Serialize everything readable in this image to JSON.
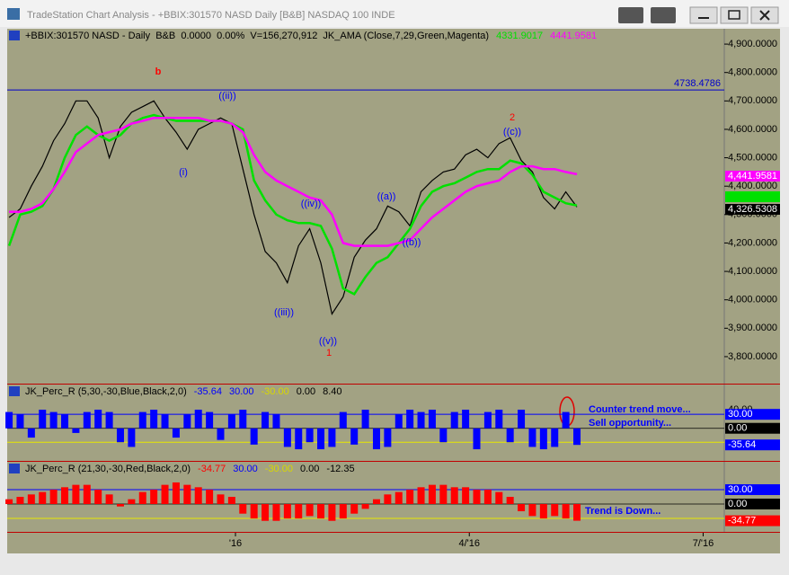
{
  "window": {
    "title": "TradeStation Chart Analysis - +BBIX:301570 NASD Daily [B&B] NASDAQ 100 INDE"
  },
  "chart_data": [
    {
      "type": "line",
      "header": "+BBIX:301570 NASD - Daily  B&B  0.0000  0.00%  V=156,270,912  JK_AMA (Close,7,29,Green,Magenta)",
      "x": [
        0,
        3,
        6,
        9,
        12,
        15,
        18,
        21,
        24,
        27,
        30,
        33,
        36,
        39,
        42,
        45,
        48,
        51,
        54,
        57,
        60,
        63,
        66,
        69,
        72,
        75,
        78,
        81,
        84,
        87,
        90,
        93,
        96,
        99,
        102,
        105,
        108,
        111,
        114,
        117,
        120,
        123,
        126,
        129,
        132,
        135,
        138,
        141,
        144,
        147,
        150,
        153
      ],
      "xlim": [
        -0.5,
        192.7
      ],
      "xticks": [
        {
          "value": 61,
          "label": "'16"
        },
        {
          "value": 124,
          "label": "4/'16"
        },
        {
          "value": 187,
          "label": "7/'16"
        }
      ],
      "ylim": [
        3705,
        4954
      ],
      "yticks": [
        {
          "value": 3800,
          "label": "3,800.0000"
        },
        {
          "value": 3900,
          "label": "3,900.0000"
        },
        {
          "value": 4000,
          "label": "4,000.0000"
        },
        {
          "value": 4100,
          "label": "4,100.0000"
        },
        {
          "value": 4200,
          "label": "4,200.0000"
        },
        {
          "value": 4300,
          "label": "4,300.0000"
        },
        {
          "value": 4400,
          "label": "4,400.0000"
        },
        {
          "value": 4500,
          "label": "4,500.0000"
        },
        {
          "value": 4600,
          "label": "4,600.0000"
        },
        {
          "value": 4700,
          "label": "4,700.0000"
        },
        {
          "value": 4800,
          "label": "4,800.0000"
        },
        {
          "value": 4900,
          "label": "4,900.0000"
        }
      ],
      "hline": {
        "value": 4738.4786,
        "label": "4738.4786",
        "color": "#0000cc"
      },
      "series": [
        {
          "color": "#000000",
          "tag": "4,326.5308",
          "values": [
            4290,
            4320,
            4400,
            4470,
            4560,
            4620,
            4700,
            4700,
            4640,
            4500,
            4610,
            4660,
            4680,
            4700,
            4640,
            4590,
            4530,
            4600,
            4620,
            4640,
            4620,
            4460,
            4300,
            4170,
            4130,
            4060,
            4190,
            4250,
            4130,
            3950,
            4010,
            4150,
            4210,
            4250,
            4330,
            4310,
            4260,
            4380,
            4420,
            4450,
            4460,
            4510,
            4530,
            4500,
            4550,
            4570,
            4490,
            4450,
            4360,
            4320,
            4380,
            4326.5308
          ]
        },
        {
          "color": "#00e000",
          "header_label": "4331.9017",
          "values": [
            4190,
            4300,
            4310,
            4330,
            4390,
            4500,
            4580,
            4610,
            4580,
            4560,
            4580,
            4620,
            4640,
            4650,
            4640,
            4630,
            4630,
            4630,
            4630,
            4630,
            4620,
            4600,
            4420,
            4350,
            4300,
            4280,
            4270,
            4270,
            4260,
            4180,
            4040,
            4020,
            4080,
            4130,
            4150,
            4200,
            4250,
            4330,
            4380,
            4400,
            4410,
            4430,
            4450,
            4460,
            4460,
            4490,
            4480,
            4440,
            4380,
            4360,
            4340,
            4331.9017
          ]
        },
        {
          "color": "#ff00ff",
          "header_label": "4441.9581",
          "tag": "4,441.9581",
          "values": [
            4310,
            4310,
            4320,
            4340,
            4390,
            4450,
            4520,
            4550,
            4580,
            4590,
            4600,
            4620,
            4630,
            4640,
            4640,
            4640,
            4640,
            4640,
            4630,
            4630,
            4620,
            4590,
            4510,
            4450,
            4420,
            4400,
            4380,
            4360,
            4350,
            4300,
            4200,
            4190,
            4190,
            4190,
            4190,
            4200,
            4210,
            4250,
            4290,
            4320,
            4350,
            4380,
            4400,
            4410,
            4420,
            4450,
            4470,
            4470,
            4460,
            4460,
            4450,
            4441.9581
          ]
        }
      ],
      "annotations": [
        {
          "text": "b",
          "color": "#ff0000"
        },
        {
          "text": "((ii))",
          "color": "#0000ff"
        },
        {
          "text": "(i)",
          "color": "#0000ff"
        },
        {
          "text": "((iii))",
          "color": "#0000ff"
        },
        {
          "text": "((iv))",
          "color": "#0000ff"
        },
        {
          "text": "((v))",
          "color": "#0000ff"
        },
        {
          "text": "1",
          "color": "#ff0000"
        },
        {
          "text": "((a))",
          "color": "#0000ff"
        },
        {
          "text": "((b))",
          "color": "#0000ff"
        },
        {
          "text": "((c))",
          "color": "#0000ff"
        },
        {
          "text": "2",
          "color": "#ff0000"
        }
      ]
    },
    {
      "type": "bar",
      "header": "JK_Perc_R (5,30,-30,Blue,Black,2,0)",
      "color": "#0000ff",
      "header_values": [
        {
          "label": "-35.64",
          "color": "#0000ff"
        },
        {
          "label": "30.00",
          "color": "#0000ff"
        },
        {
          "label": "-30.00",
          "color": "#d8d800"
        },
        {
          "label": "0.00",
          "color": "#000000"
        },
        {
          "label": "8.40",
          "color": "#000000"
        }
      ],
      "ylim": [
        -70,
        94
      ],
      "levels": [
        {
          "value": 30,
          "color": "#0000ff"
        },
        {
          "value": -30,
          "color": "#e8e800"
        }
      ],
      "tags": [
        {
          "value": 40,
          "label": "40.00",
          "bg": "#a2a283",
          "fg": "#000000"
        },
        {
          "value": 30,
          "label": "30.00",
          "bg": "#0000ff",
          "fg": "#ffffff"
        },
        {
          "value": 0,
          "label": "0.00",
          "bg": "#000000",
          "fg": "#ffffff"
        },
        {
          "value": -35.64,
          "label": "-35.64",
          "bg": "#0000ff",
          "fg": "#ffffff"
        }
      ],
      "values": [
        35,
        30,
        -20,
        40,
        35,
        30,
        -10,
        35,
        40,
        35,
        -30,
        -40,
        35,
        40,
        30,
        -20,
        30,
        40,
        35,
        -25,
        30,
        40,
        -35,
        35,
        30,
        -40,
        -45,
        -30,
        -45,
        -40,
        35,
        -35,
        40,
        -45,
        -40,
        30,
        40,
        35,
        40,
        -30,
        35,
        40,
        -45,
        35,
        40,
        -30,
        40,
        -40,
        -45,
        -40,
        35,
        -35.64
      ],
      "annotations": [
        {
          "text": "Counter trend move...",
          "color": "#0000ff"
        },
        {
          "text": "Sell opportunity...",
          "color": "#0000ff"
        }
      ]
    },
    {
      "type": "bar",
      "header": "JK_Perc_R (21,30,-30,Red,Black,2,0)",
      "color": "#ff0000",
      "header_values": [
        {
          "label": "-34.77",
          "color": "#ff0000"
        },
        {
          "label": "30.00",
          "color": "#0000ff"
        },
        {
          "label": "-30.00",
          "color": "#d8d800"
        },
        {
          "label": "0.00",
          "color": "#000000"
        },
        {
          "label": "-12.35",
          "color": "#000000"
        }
      ],
      "ylim": [
        -58,
        88
      ],
      "levels": [
        {
          "value": 30,
          "color": "#0000ff"
        },
        {
          "value": -30,
          "color": "#e8e800"
        }
      ],
      "tags": [
        {
          "value": 30,
          "label": "30.00",
          "bg": "#0000ff",
          "fg": "#ffffff"
        },
        {
          "value": 0,
          "label": "0.00",
          "bg": "#000000",
          "fg": "#ffffff"
        },
        {
          "value": -34.77,
          "label": "-34.77",
          "bg": "#ff0000",
          "fg": "#ffffff"
        }
      ],
      "values": [
        10,
        15,
        20,
        25,
        30,
        35,
        40,
        40,
        30,
        20,
        -5,
        10,
        25,
        30,
        40,
        45,
        40,
        35,
        30,
        20,
        15,
        -20,
        -30,
        -35,
        -35,
        -30,
        -30,
        -25,
        -30,
        -35,
        -30,
        -20,
        -10,
        10,
        20,
        25,
        30,
        35,
        40,
        40,
        35,
        35,
        30,
        30,
        25,
        15,
        -15,
        -25,
        -30,
        -25,
        -30,
        -34.77
      ],
      "annotations": [
        {
          "text": "Trend is Down...",
          "color": "#0000ff"
        }
      ]
    }
  ]
}
